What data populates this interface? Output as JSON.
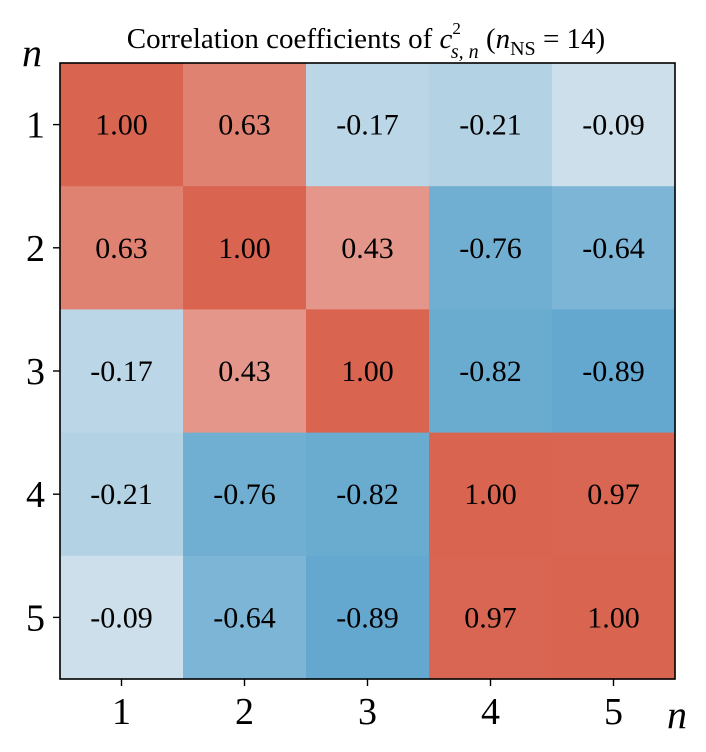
{
  "chart_data": {
    "type": "heatmap",
    "title": {
      "prefix": "Correlation coefficients of ",
      "symbol": "c",
      "superscript": "2",
      "subscript": "s, n",
      "paren_open": " (",
      "nvar": "n",
      "nsub": "NS",
      "paren_rest": " = 14)"
    },
    "xlabel": "n",
    "ylabel": "n",
    "x_categories": [
      "1",
      "2",
      "3",
      "4",
      "5"
    ],
    "y_categories": [
      "1",
      "2",
      "3",
      "4",
      "5"
    ],
    "values": [
      [
        1.0,
        0.63,
        -0.17,
        -0.21,
        -0.09
      ],
      [
        0.63,
        1.0,
        0.43,
        -0.76,
        -0.64
      ],
      [
        -0.17,
        0.43,
        1.0,
        -0.82,
        -0.89
      ],
      [
        -0.21,
        -0.76,
        -0.82,
        1.0,
        0.97
      ],
      [
        -0.09,
        -0.64,
        -0.89,
        0.97,
        1.0
      ]
    ],
    "value_labels": [
      [
        "1.00",
        "0.63",
        "-0.17",
        "-0.21",
        "-0.09"
      ],
      [
        "0.63",
        "1.00",
        "0.43",
        "-0.76",
        "-0.64"
      ],
      [
        "-0.17",
        "0.43",
        "1.00",
        "-0.82",
        "-0.89"
      ],
      [
        "-0.21",
        "-0.76",
        "-0.82",
        "1.00",
        "0.97"
      ],
      [
        "-0.09",
        "-0.64",
        "-0.89",
        "0.97",
        "1.00"
      ]
    ],
    "colormap": "diverging blue-white-red",
    "vlim": [
      -1,
      1
    ],
    "grid": false,
    "colors": {
      "negative": "#5aa3cc",
      "neutral": "#f5f5f5",
      "positive": "#d96450"
    }
  }
}
